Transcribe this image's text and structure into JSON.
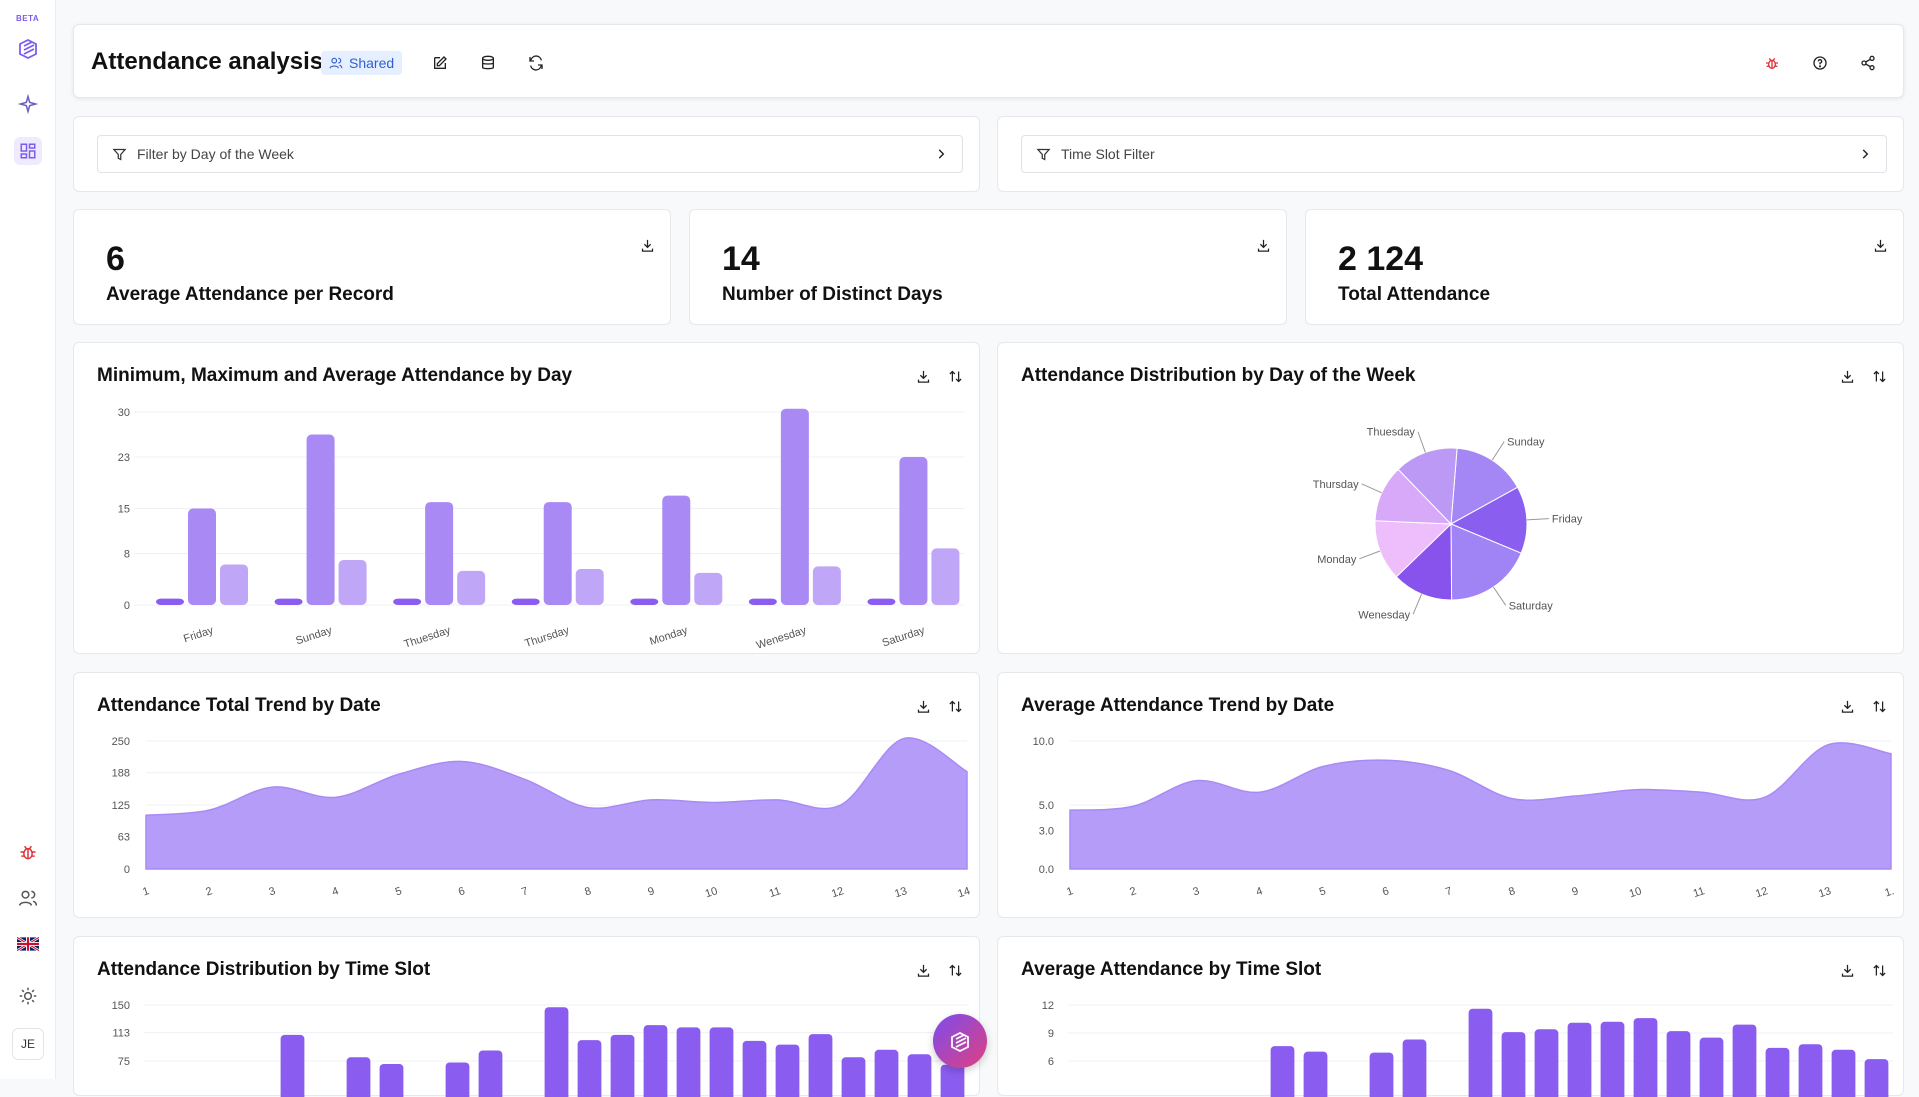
{
  "rail": {
    "beta": "BETA",
    "avatar": "JE",
    "icons": [
      "logo-icon",
      "sparkle-icon",
      "dashboard-icon",
      "bug-icon",
      "users-icon",
      "uk-flag-icon",
      "sun-icon"
    ]
  },
  "header": {
    "title": "Attendance analysis",
    "shared_label": "Shared"
  },
  "filters": {
    "day": "Filter by Day of the Week",
    "time": "Time Slot Filter"
  },
  "kpis": [
    {
      "value": "6",
      "label": "Average Attendance per Record"
    },
    {
      "value": "14",
      "label": "Number of Distinct Days"
    },
    {
      "value": "2 124",
      "label": "Total Attendance"
    }
  ],
  "charts": {
    "minmax": {
      "title": "Minimum, Maximum and Average Attendance by Day"
    },
    "pie": {
      "title": "Attendance Distribution by Day of the Week"
    },
    "total_trend": {
      "title": "Attendance Total Trend by Date"
    },
    "avg_trend": {
      "title": "Average Attendance Trend by Date"
    },
    "slot_dist": {
      "title": "Attendance Distribution by Time Slot"
    },
    "slot_avg": {
      "title": "Average Attendance by Time Slot"
    }
  },
  "chart_data": [
    {
      "type": "bar",
      "title": "Minimum, Maximum and Average Attendance by Day",
      "categories": [
        "Friday",
        "Sunday",
        "Thuesday",
        "Thursday",
        "Monday",
        "Wenesday",
        "Saturday"
      ],
      "yticks": [
        "30",
        "23",
        "15",
        "8",
        "0"
      ],
      "ylim": [
        0,
        30
      ],
      "series": [
        {
          "values": [
            1,
            1,
            1,
            1,
            1,
            1,
            1
          ]
        },
        {
          "values": [
            15,
            26.5,
            16,
            16,
            17,
            30.5,
            23
          ]
        },
        {
          "values": [
            6.3,
            7,
            5.3,
            5.6,
            5,
            6,
            8.8
          ]
        }
      ],
      "colors": [
        "#8a5cf0",
        "#a98af5",
        "#c0a6f7"
      ]
    },
    {
      "type": "pie",
      "title": "Attendance Distribution by Day of the Week",
      "categories": [
        "Sunday",
        "Friday",
        "Saturday",
        "Wenesday",
        "Monday",
        "Thursday",
        "Thuesday"
      ],
      "values": [
        15.7,
        14.3,
        18.6,
        12.9,
        12.9,
        12.1,
        13.5
      ],
      "colors": [
        "#a487f5",
        "#8a5eef",
        "#a083f4",
        "#8753ec",
        "#eebdfb",
        "#d7a9f8",
        "#bd99f6"
      ]
    },
    {
      "type": "area",
      "title": "Attendance Total Trend by Date",
      "x": [
        "1",
        "2",
        "3",
        "4",
        "5",
        "6",
        "7",
        "8",
        "9",
        "10",
        "11",
        "12",
        "13",
        "14"
      ],
      "yticks": [
        "250",
        "188",
        "125",
        "63",
        "0"
      ],
      "ylim": [
        0,
        250
      ],
      "values": [
        105,
        115,
        160,
        140,
        185,
        210,
        175,
        120,
        135,
        130,
        135,
        125,
        255,
        190
      ],
      "color": "#b59cf8"
    },
    {
      "type": "area",
      "title": "Average Attendance Trend by Date",
      "x": [
        "1",
        "2",
        "3",
        "4",
        "5",
        "6",
        "7",
        "8",
        "9",
        "10",
        "11",
        "12",
        "13",
        "1."
      ],
      "yticks": [
        "10.0",
        "5.0",
        "3.0",
        "0.0"
      ],
      "ylim": [
        0,
        10
      ],
      "values": [
        4.6,
        4.9,
        6.9,
        6.0,
        8.0,
        8.5,
        7.7,
        5.5,
        5.7,
        6.2,
        6.0,
        5.6,
        9.7,
        9.0
      ],
      "color": "#b59cf8"
    },
    {
      "type": "bar",
      "title": "Attendance Distribution by Time Slot",
      "yticks": [
        "150",
        "113",
        "75"
      ],
      "ylim": [
        0,
        150
      ],
      "values": [
        0,
        0,
        0,
        0,
        110,
        0,
        80,
        71,
        0,
        73,
        89,
        0,
        147,
        103,
        110,
        123,
        120,
        120,
        102,
        97,
        111,
        80,
        90,
        84,
        70
      ],
      "color": "#8a5cf0"
    },
    {
      "type": "bar",
      "title": "Average Attendance by Time Slot",
      "yticks": [
        "12",
        "9",
        "6"
      ],
      "ylim": [
        0,
        12
      ],
      "values": [
        0,
        0,
        0,
        0,
        0,
        0,
        7.6,
        7,
        0,
        6.9,
        8.3,
        0,
        11.6,
        9.1,
        9.4,
        10.1,
        10.2,
        10.6,
        9.2,
        8.5,
        9.9,
        7.4,
        7.8,
        7.2,
        6.2
      ],
      "color": "#8a5cf0"
    }
  ]
}
